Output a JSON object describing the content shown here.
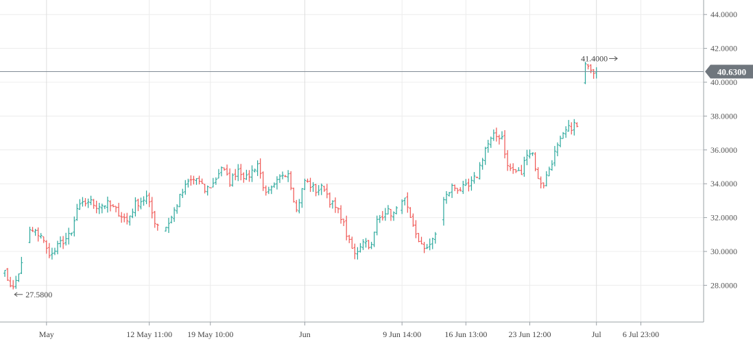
{
  "chart_data": {
    "type": "ohlc",
    "title": "",
    "xlabel": "",
    "ylabel": "",
    "ylim": [
      26.5,
      45.0
    ],
    "y_ticks": [
      "28.0000",
      "30.0000",
      "32.0000",
      "34.0000",
      "36.0000",
      "38.0000",
      "40.0000",
      "42.0000",
      "44.0000"
    ],
    "x_ticks": [
      "May",
      "12 May 11:00",
      "19 May 10:00",
      "Jun",
      "9 Jun 14:00",
      "16 Jun 13:00",
      "23 Jun 12:00",
      "Jul",
      "6 Jul 23:00"
    ],
    "x_tick_index": [
      16,
      53,
      75,
      109,
      144,
      167,
      190,
      214,
      230
    ],
    "bar_count": 236,
    "last_price": 40.63,
    "last_price_label": "40.6300",
    "high_marker": {
      "label": "41.4000",
      "value": 41.4,
      "index": 222
    },
    "low_marker": {
      "label": "27.5800",
      "value": 27.58,
      "index": 4
    },
    "grid": true,
    "colors": {
      "up": "#26a69a",
      "down": "#ef5350",
      "price_line": "#7f8a94",
      "price_tag_bg": "#6f767d",
      "grid": "#ececec",
      "axis": "#9aa0a6"
    },
    "anchors": [
      [
        0,
        29.0
      ],
      [
        4,
        27.8
      ],
      [
        8,
        29.7
      ],
      [
        10,
        31.2
      ],
      [
        14,
        31.0
      ],
      [
        16,
        30.1
      ],
      [
        18,
        29.8
      ],
      [
        21,
        30.5
      ],
      [
        25,
        31.0
      ],
      [
        27,
        32.5
      ],
      [
        31,
        33.0
      ],
      [
        34,
        32.7
      ],
      [
        38,
        32.8
      ],
      [
        42,
        32.3
      ],
      [
        45,
        31.8
      ],
      [
        48,
        32.8
      ],
      [
        52,
        33.2
      ],
      [
        55,
        31.8
      ],
      [
        58,
        31.2
      ],
      [
        61,
        32.0
      ],
      [
        64,
        33.2
      ],
      [
        67,
        34.1
      ],
      [
        70,
        34.3
      ],
      [
        73,
        33.6
      ],
      [
        76,
        34.0
      ],
      [
        79,
        35.0
      ],
      [
        82,
        34.1
      ],
      [
        85,
        34.9
      ],
      [
        88,
        34.3
      ],
      [
        92,
        35.2
      ],
      [
        95,
        33.3
      ],
      [
        98,
        33.8
      ],
      [
        101,
        34.6
      ],
      [
        103,
        34.7
      ],
      [
        106,
        32.4
      ],
      [
        109,
        34.2
      ],
      [
        113,
        33.6
      ],
      [
        116,
        33.8
      ],
      [
        118,
        33.0
      ],
      [
        122,
        32.1
      ],
      [
        125,
        30.5
      ],
      [
        127,
        29.8
      ],
      [
        130,
        30.7
      ],
      [
        133,
        30.3
      ],
      [
        135,
        31.8
      ],
      [
        138,
        32.4
      ],
      [
        141,
        32.2
      ],
      [
        145,
        33.0
      ],
      [
        147,
        31.8
      ],
      [
        150,
        30.7
      ],
      [
        152,
        30.0
      ],
      [
        155,
        30.8
      ],
      [
        157,
        30.9
      ],
      [
        159,
        33.0
      ],
      [
        162,
        33.8
      ],
      [
        165,
        33.7
      ],
      [
        168,
        33.8
      ],
      [
        171,
        34.5
      ],
      [
        174,
        36.1
      ],
      [
        177,
        36.8
      ],
      [
        180,
        36.8
      ],
      [
        182,
        35.0
      ],
      [
        184,
        34.8
      ],
      [
        187,
        34.6
      ],
      [
        189,
        35.9
      ],
      [
        191,
        35.8
      ],
      [
        193,
        34.2
      ],
      [
        195,
        34.0
      ],
      [
        197,
        34.9
      ],
      [
        199,
        35.8
      ],
      [
        201,
        36.5
      ],
      [
        203,
        37.1
      ],
      [
        206,
        37.5
      ],
      [
        208,
        37.2
      ],
      [
        209,
        39.8
      ],
      [
        210,
        41.3
      ],
      [
        212,
        40.9
      ],
      [
        213,
        40.7
      ],
      [
        214,
        40.63
      ]
    ]
  }
}
